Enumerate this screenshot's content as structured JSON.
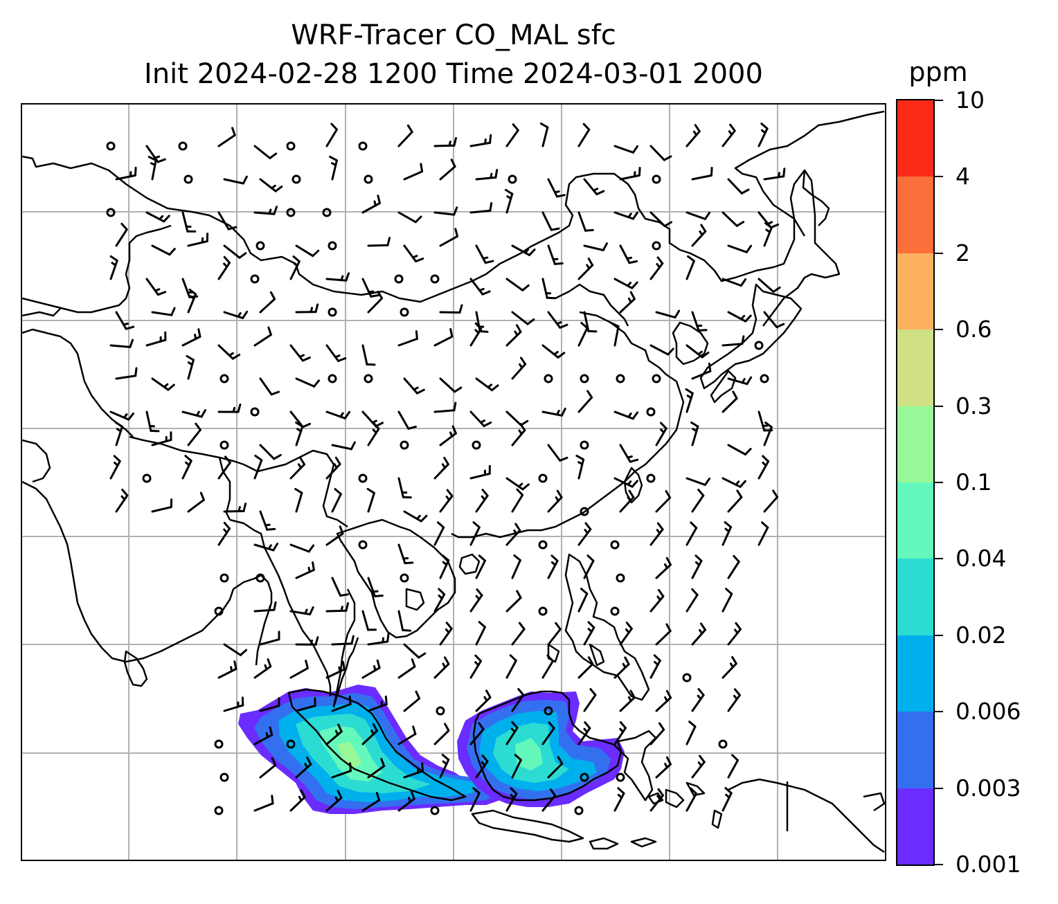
{
  "title": {
    "line1": "WRF-Tracer CO_MAL sfc",
    "line2": "Init 2024-02-28 1200 Time 2024-03-01 2000"
  },
  "colorbar": {
    "units": "ppm",
    "levels": [
      "0.001",
      "0.003",
      "0.006",
      "0.02",
      "0.04",
      "0.1",
      "0.3",
      "0.6",
      "2",
      "4",
      "10"
    ],
    "colors": [
      "#6a2cff",
      "#3370f0",
      "#00b0ec",
      "#2cdcd3",
      "#64f8bc",
      "#98f898",
      "#cfe085",
      "#fdb060",
      "#fb6f3b",
      "#fa2a17"
    ]
  },
  "map": {
    "gridlines": true,
    "coastline_color": "#000000",
    "gridline_color": "#b0b0b0"
  },
  "chart_data": {
    "type": "heatmap",
    "variable": "CO_MAL",
    "level": "sfc",
    "init": "2024-02-28 1200",
    "valid": "2024-03-01 2000",
    "units": "ppm",
    "color_levels": [
      0.001,
      0.003,
      0.006,
      0.02,
      0.04,
      0.1,
      0.3,
      0.6,
      2,
      4,
      10
    ],
    "max_level_reached": 0.1,
    "plume_regions": [
      "Sumatra",
      "Borneo"
    ],
    "overlay": "wind barbs"
  }
}
